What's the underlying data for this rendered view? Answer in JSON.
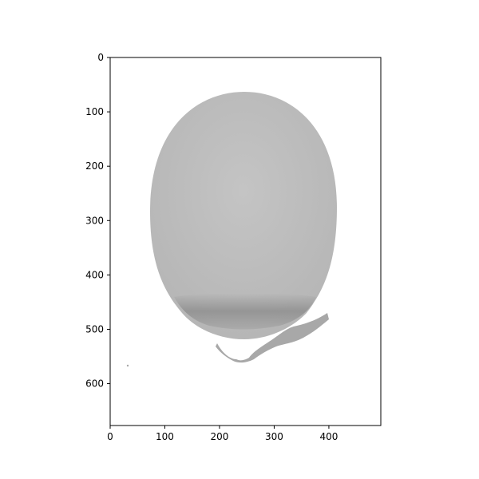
{
  "chart_data": {
    "type": "image",
    "image_description": "grayscale specimen: egg-shaped body with a darker band near the bottom and a small tendril/stem at the base",
    "xlim": [
      0,
      495
    ],
    "ylim": [
      677,
      0
    ],
    "x_ticks": [
      0,
      100,
      200,
      300,
      400
    ],
    "y_ticks": [
      0,
      100,
      200,
      300,
      400,
      500,
      600
    ],
    "x_tick_labels": [
      "0",
      "100",
      "200",
      "300",
      "400"
    ],
    "y_tick_labels": [
      "0",
      "100",
      "200",
      "300",
      "400",
      "500",
      "600"
    ],
    "colors": {
      "body": "#b6b6b6",
      "body_light": "#c4c4c4",
      "dark_band": "#8f8f8f",
      "stem": "#a8a8a8"
    }
  }
}
